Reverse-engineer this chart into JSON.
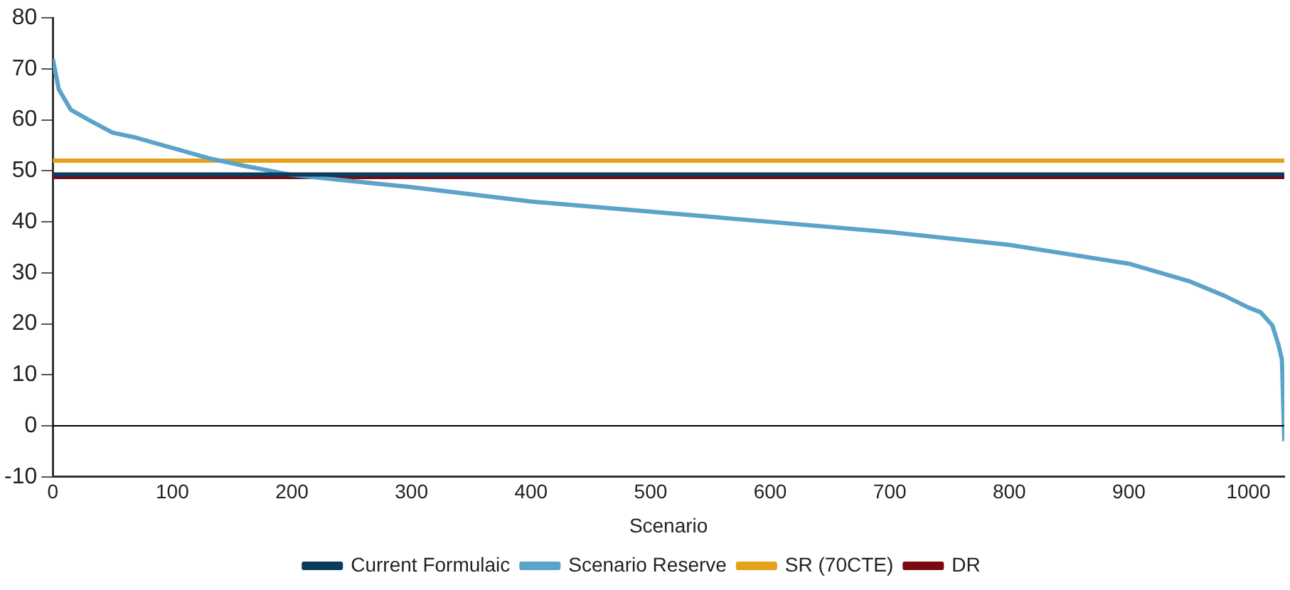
{
  "chart_data": {
    "type": "line",
    "xlabel": "Scenario",
    "xlim": [
      0,
      1030
    ],
    "xticks": [
      0,
      100,
      200,
      300,
      400,
      500,
      600,
      700,
      800,
      900,
      1000
    ],
    "ylim": [
      -10,
      80
    ],
    "yticks": [
      -10,
      0,
      10,
      20,
      30,
      40,
      50,
      60,
      70,
      80
    ],
    "grid": false,
    "legend": "bottom",
    "marker": "none",
    "line_style": "solid",
    "ref_lines": [
      {
        "axis": "y",
        "value": 0,
        "color": "#000000"
      }
    ],
    "series": [
      {
        "name": "Current Formulaic",
        "color": "#0d3b5e",
        "x": [
          0,
          1030
        ],
        "values": [
          49.3,
          49.3
        ]
      },
      {
        "name": "Scenario Reserve",
        "color": "#5ba3c9",
        "x": [
          0,
          5,
          15,
          30,
          50,
          70,
          100,
          130,
          160,
          200,
          250,
          300,
          400,
          500,
          600,
          700,
          800,
          900,
          950,
          980,
          1000,
          1010,
          1020,
          1025,
          1028,
          1030
        ],
        "values": [
          72,
          66,
          62,
          60,
          57.5,
          56.5,
          54.5,
          52.5,
          51,
          49.2,
          48,
          46.8,
          44,
          42,
          40,
          38,
          35.5,
          31.8,
          28.4,
          25.5,
          23.2,
          22.3,
          19.7,
          16,
          13,
          -3
        ]
      },
      {
        "name": "SR (70CTE)",
        "color": "#e5a11a",
        "x": [
          0,
          1030
        ],
        "values": [
          52,
          52
        ]
      },
      {
        "name": "DR",
        "color": "#7a0a12",
        "x": [
          0,
          1030
        ],
        "values": [
          48.8,
          48.8
        ]
      }
    ]
  }
}
